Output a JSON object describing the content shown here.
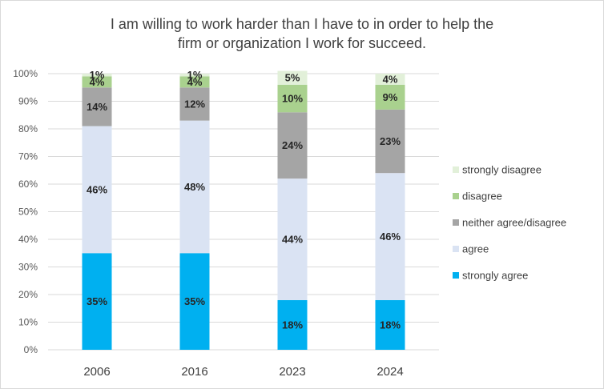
{
  "chart_data": {
    "type": "bar",
    "stacked": true,
    "title_lines": [
      "I am willing to work harder than I have to in order to help the",
      "firm or organization I work for succeed."
    ],
    "categories": [
      "2006",
      "2016",
      "2023",
      "2024"
    ],
    "ylim": [
      0,
      100
    ],
    "yticks": [
      "0%",
      "10%",
      "20%",
      "30%",
      "40%",
      "50%",
      "60%",
      "70%",
      "80%",
      "90%",
      "100%"
    ],
    "grid": true,
    "legend_position": "right",
    "series": [
      {
        "name": "strongly agree",
        "color": "#00b0f0",
        "values": [
          35,
          35,
          18,
          18
        ],
        "labels": [
          "35%",
          "35%",
          "18%",
          "18%"
        ]
      },
      {
        "name": "agree",
        "color": "#dae3f3",
        "values": [
          46,
          48,
          44,
          46
        ],
        "labels": [
          "46%",
          "48%",
          "44%",
          "46%"
        ]
      },
      {
        "name": "neither agree/disagree",
        "color": "#a5a5a5",
        "values": [
          14,
          12,
          24,
          23
        ],
        "labels": [
          "14%",
          "12%",
          "24%",
          "23%"
        ]
      },
      {
        "name": "disagree",
        "color": "#a9d18e",
        "values": [
          4,
          4,
          10,
          9
        ],
        "labels": [
          "4%",
          "4%",
          "10%",
          "9%"
        ]
      },
      {
        "name": "strongly disagree",
        "color": "#e2f0d9",
        "values": [
          1,
          1,
          5,
          4
        ],
        "labels": [
          "1%",
          "1%",
          "5%",
          "4%"
        ]
      }
    ]
  }
}
